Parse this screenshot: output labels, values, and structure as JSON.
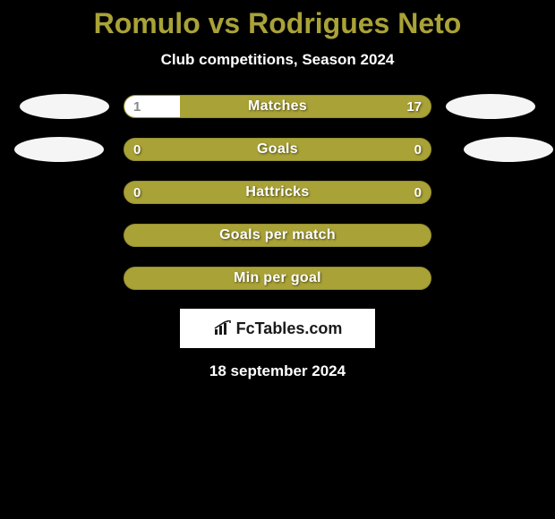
{
  "title": "Romulo vs Rodrigues Neto",
  "subtitle": "Club competitions, Season 2024",
  "date": "18 september 2024",
  "colors": {
    "background": "#000000",
    "accent": "#a9a237",
    "accent_border": "#958d2e",
    "text": "#ffffff",
    "bar_fill_left": "#ffffff",
    "badge_bg": "#f5f5f5",
    "logo_bg": "#ffffff",
    "logo_text": "#1a1a1a"
  },
  "logo": {
    "text": "FcTables.com"
  },
  "rows": [
    {
      "label": "Matches",
      "left_value": "1",
      "right_value": "17",
      "left_fill_pct": 18,
      "show_left_badge": true,
      "show_right_badge": true,
      "left_on_white": true
    },
    {
      "label": "Goals",
      "left_value": "0",
      "right_value": "0",
      "left_fill_pct": 0,
      "show_left_badge": true,
      "show_right_badge": true,
      "left_badge_offset": true,
      "right_badge_offset": true
    },
    {
      "label": "Hattricks",
      "left_value": "0",
      "right_value": "0",
      "left_fill_pct": 0,
      "show_left_badge": false,
      "show_right_badge": false
    },
    {
      "label": "Goals per match",
      "left_value": "",
      "right_value": "",
      "left_fill_pct": 0,
      "show_left_badge": false,
      "show_right_badge": false
    },
    {
      "label": "Min per goal",
      "left_value": "",
      "right_value": "",
      "left_fill_pct": 0,
      "show_left_badge": false,
      "show_right_badge": false
    }
  ]
}
